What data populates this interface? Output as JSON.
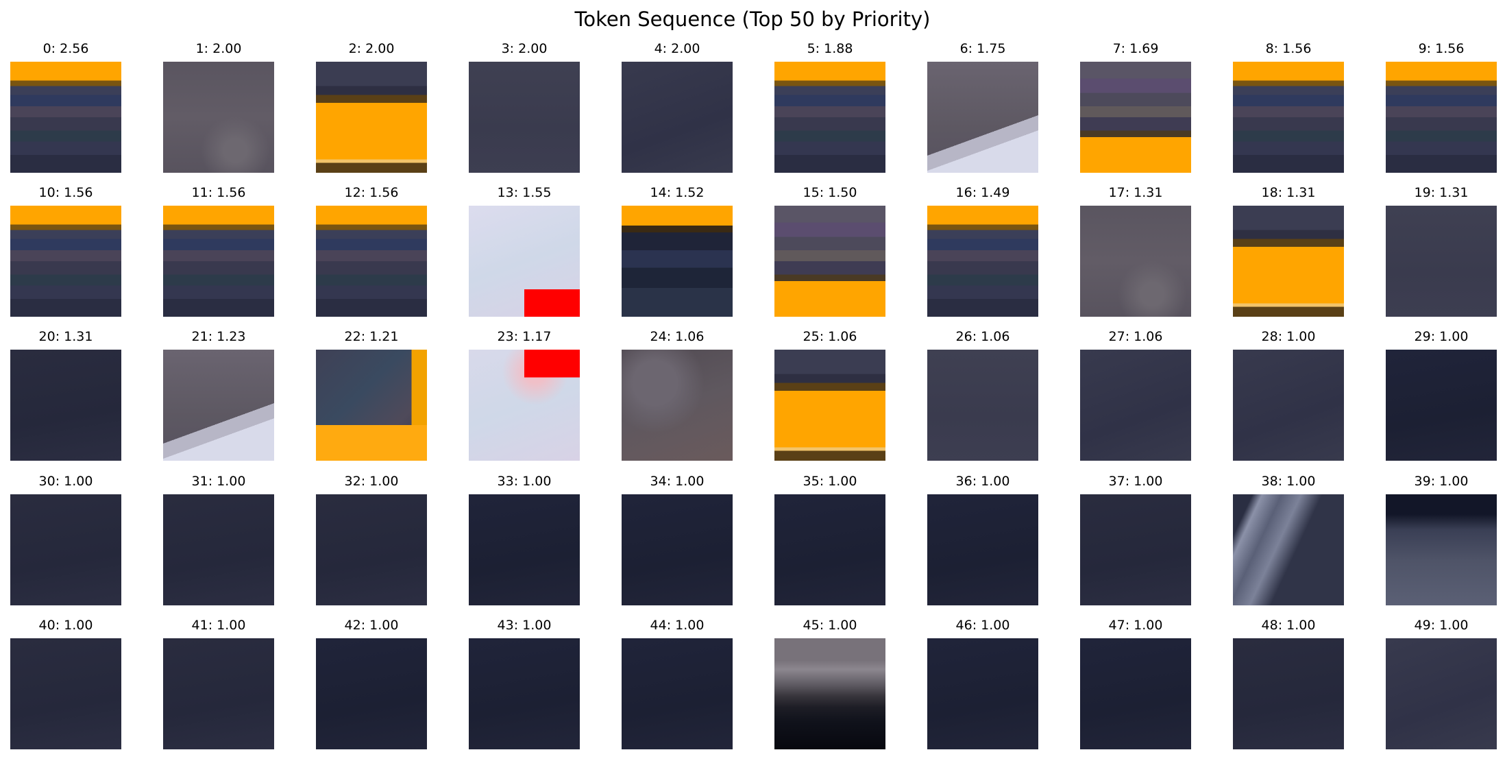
{
  "figure": {
    "title": "Token Sequence (Top 50 by Priority)"
  },
  "tokens": [
    {
      "index": 0,
      "label": "0: 2.56",
      "priority": 2.56,
      "pattern": "orange-top-bands"
    },
    {
      "index": 1,
      "label": "1: 2.00",
      "priority": 2.0,
      "pattern": "gray-texture"
    },
    {
      "index": 2,
      "label": "2: 2.00",
      "priority": 2.0,
      "pattern": "orange-middle-band"
    },
    {
      "index": 3,
      "label": "3: 2.00",
      "priority": 2.0,
      "pattern": "slate"
    },
    {
      "index": 4,
      "label": "4: 2.00",
      "priority": 2.0,
      "pattern": "slate-dark"
    },
    {
      "index": 5,
      "label": "5: 1.88",
      "priority": 1.88,
      "pattern": "orange-top-bands"
    },
    {
      "index": 6,
      "label": "6: 1.75",
      "priority": 1.75,
      "pattern": "gray-white-corner"
    },
    {
      "index": 7,
      "label": "7: 1.69",
      "priority": 1.69,
      "pattern": "purple-bands-orange-bottom"
    },
    {
      "index": 8,
      "label": "8: 1.56",
      "priority": 1.56,
      "pattern": "orange-top-bands"
    },
    {
      "index": 9,
      "label": "9: 1.56",
      "priority": 1.56,
      "pattern": "orange-top-bands"
    },
    {
      "index": 10,
      "label": "10: 1.56",
      "priority": 1.56,
      "pattern": "orange-top-bands"
    },
    {
      "index": 11,
      "label": "11: 1.56",
      "priority": 1.56,
      "pattern": "orange-top-bands"
    },
    {
      "index": 12,
      "label": "12: 1.56",
      "priority": 1.56,
      "pattern": "orange-top-bands"
    },
    {
      "index": 13,
      "label": "13: 1.55",
      "priority": 1.55,
      "pattern": "white-red-bottom"
    },
    {
      "index": 14,
      "label": "14: 1.52",
      "priority": 1.52,
      "pattern": "orange-top-dark-bands"
    },
    {
      "index": 15,
      "label": "15: 1.50",
      "priority": 1.5,
      "pattern": "purple-bands-orange-bottom"
    },
    {
      "index": 16,
      "label": "16: 1.49",
      "priority": 1.49,
      "pattern": "orange-top-bands"
    },
    {
      "index": 17,
      "label": "17: 1.31",
      "priority": 1.31,
      "pattern": "gray-texture"
    },
    {
      "index": 18,
      "label": "18: 1.31",
      "priority": 1.31,
      "pattern": "orange-middle-band"
    },
    {
      "index": 19,
      "label": "19: 1.31",
      "priority": 1.31,
      "pattern": "slate"
    },
    {
      "index": 20,
      "label": "20: 1.31",
      "priority": 1.31,
      "pattern": "navy"
    },
    {
      "index": 21,
      "label": "21: 1.23",
      "priority": 1.23,
      "pattern": "gray-white-corner"
    },
    {
      "index": 22,
      "label": "22: 1.21",
      "priority": 1.21,
      "pattern": "orange-corner"
    },
    {
      "index": 23,
      "label": "23: 1.17",
      "priority": 1.17,
      "pattern": "white-red-top"
    },
    {
      "index": 24,
      "label": "24: 1.06",
      "priority": 1.06,
      "pattern": "gray-brown"
    },
    {
      "index": 25,
      "label": "25: 1.06",
      "priority": 1.06,
      "pattern": "orange-middle-band"
    },
    {
      "index": 26,
      "label": "26: 1.06",
      "priority": 1.06,
      "pattern": "slate"
    },
    {
      "index": 27,
      "label": "27: 1.06",
      "priority": 1.06,
      "pattern": "slate-dark"
    },
    {
      "index": 28,
      "label": "28: 1.00",
      "priority": 1.0,
      "pattern": "slate-dark"
    },
    {
      "index": 29,
      "label": "29: 1.00",
      "priority": 1.0,
      "pattern": "navy-deep"
    },
    {
      "index": 30,
      "label": "30: 1.00",
      "priority": 1.0,
      "pattern": "navy"
    },
    {
      "index": 31,
      "label": "31: 1.00",
      "priority": 1.0,
      "pattern": "navy"
    },
    {
      "index": 32,
      "label": "32: 1.00",
      "priority": 1.0,
      "pattern": "navy"
    },
    {
      "index": 33,
      "label": "33: 1.00",
      "priority": 1.0,
      "pattern": "navy-deep"
    },
    {
      "index": 34,
      "label": "34: 1.00",
      "priority": 1.0,
      "pattern": "navy-deep"
    },
    {
      "index": 35,
      "label": "35: 1.00",
      "priority": 1.0,
      "pattern": "navy-deep"
    },
    {
      "index": 36,
      "label": "36: 1.00",
      "priority": 1.0,
      "pattern": "navy-deep"
    },
    {
      "index": 37,
      "label": "37: 1.00",
      "priority": 1.0,
      "pattern": "navy"
    },
    {
      "index": 38,
      "label": "38: 1.00",
      "priority": 1.0,
      "pattern": "light-streak"
    },
    {
      "index": 39,
      "label": "39: 1.00",
      "priority": 1.0,
      "pattern": "dark-top-light"
    },
    {
      "index": 40,
      "label": "40: 1.00",
      "priority": 1.0,
      "pattern": "navy"
    },
    {
      "index": 41,
      "label": "41: 1.00",
      "priority": 1.0,
      "pattern": "navy"
    },
    {
      "index": 42,
      "label": "42: 1.00",
      "priority": 1.0,
      "pattern": "navy-deep"
    },
    {
      "index": 43,
      "label": "43: 1.00",
      "priority": 1.0,
      "pattern": "navy-deep"
    },
    {
      "index": 44,
      "label": "44: 1.00",
      "priority": 1.0,
      "pattern": "navy-deep"
    },
    {
      "index": 45,
      "label": "45: 1.00",
      "priority": 1.0,
      "pattern": "gray-to-black"
    },
    {
      "index": 46,
      "label": "46: 1.00",
      "priority": 1.0,
      "pattern": "navy-deep"
    },
    {
      "index": 47,
      "label": "47: 1.00",
      "priority": 1.0,
      "pattern": "navy-deep"
    },
    {
      "index": 48,
      "label": "48: 1.00",
      "priority": 1.0,
      "pattern": "navy"
    },
    {
      "index": 49,
      "label": "49: 1.00",
      "priority": 1.0,
      "pattern": "slate-dark"
    }
  ],
  "colors": {
    "orange": "#ffa500",
    "red": "#ff0000",
    "navy": "#23273a",
    "slate": "#3d3f52",
    "gray": "#5e5962",
    "white_tint": "#d8dbea"
  }
}
